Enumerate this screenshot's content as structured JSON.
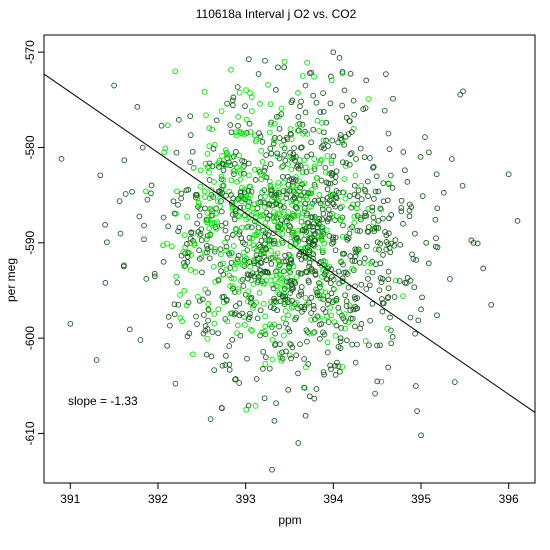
{
  "chart_data": {
    "type": "scatter",
    "title": "110618a   Interval j O2 vs. CO2",
    "xlabel": "ppm",
    "ylabel": "per meg",
    "xlim": [
      390.7,
      396.3
    ],
    "ylim": [
      -615.2,
      -568.2
    ],
    "x_ticks": [
      "391",
      "392",
      "393",
      "394",
      "395",
      "396"
    ],
    "y_ticks": [
      "-570",
      "-580",
      "-590",
      "-600",
      "-610"
    ],
    "fit_line": {
      "slope": -1.33,
      "x": [
        390.7,
        396.3
      ],
      "y": [
        -572.3,
        -607.8
      ]
    },
    "annotation": "slope =  -1.33",
    "marker": "open-circle",
    "colors": {
      "dark": "#1b5e20",
      "bright": "#00e600",
      "line": "#000000"
    },
    "point_summary": {
      "count_estimate": 1500,
      "x_center": 393.6,
      "x_spread_sd": 0.75,
      "y_center": -589.5,
      "y_spread_sd": 7.5,
      "bright_center_x": 393.3,
      "bright_center_y": -588
    },
    "highlighted_points": [
      {
        "x": 390.9,
        "y": -581.2
      },
      {
        "x": 391.0,
        "y": -598.5
      },
      {
        "x": 391.3,
        "y": -602.3
      },
      {
        "x": 391.8,
        "y": -600.2
      },
      {
        "x": 391.4,
        "y": -594.2
      },
      {
        "x": 391.5,
        "y": -573.5
      },
      {
        "x": 392.6,
        "y": -608.5
      },
      {
        "x": 393.3,
        "y": -613.8
      },
      {
        "x": 393.6,
        "y": -611.0
      },
      {
        "x": 394.0,
        "y": -570.0
      },
      {
        "x": 394.6,
        "y": -572.3
      },
      {
        "x": 395.0,
        "y": -610.2
      },
      {
        "x": 395.6,
        "y": -590.0
      },
      {
        "x": 395.8,
        "y": -596.5
      },
      {
        "x": 396.0,
        "y": -582.8
      },
      {
        "x": 396.1,
        "y": -587.7
      }
    ]
  }
}
